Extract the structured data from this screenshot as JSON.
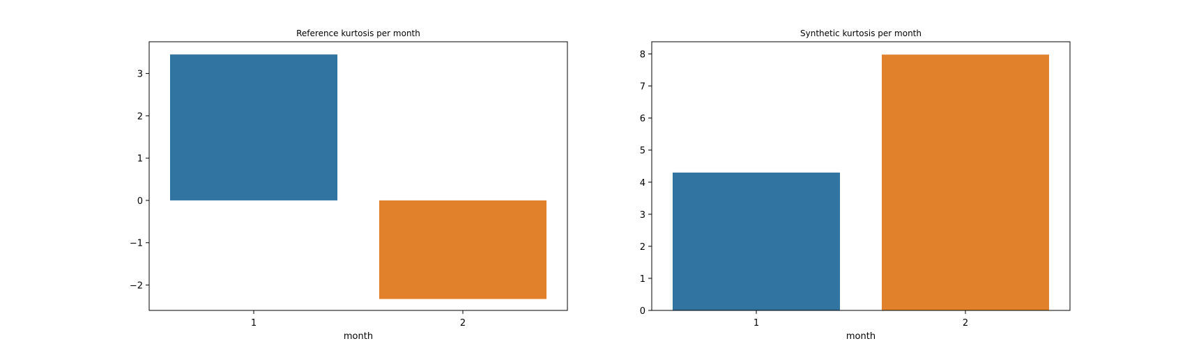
{
  "chart_data": [
    {
      "type": "bar",
      "title": "Reference kurtosis per month",
      "xlabel": "month",
      "ylabel": "",
      "categories": [
        "1",
        "2"
      ],
      "values": [
        3.45,
        -2.33
      ],
      "colors": [
        "#3274a1",
        "#e1812c"
      ],
      "ylim": [
        -2.6,
        3.75
      ],
      "yticks": [
        3,
        2,
        1,
        0,
        -1,
        -2
      ],
      "ytick_labels": [
        "3",
        "2",
        "1",
        "0",
        "−1",
        "−2"
      ],
      "grid": false
    },
    {
      "type": "bar",
      "title": "Synthetic kurtosis per month",
      "xlabel": "month",
      "ylabel": "",
      "categories": [
        "1",
        "2"
      ],
      "values": [
        4.3,
        7.98
      ],
      "colors": [
        "#3274a1",
        "#e1812c"
      ],
      "ylim": [
        0,
        8.38
      ],
      "yticks": [
        0,
        1,
        2,
        3,
        4,
        5,
        6,
        7,
        8
      ],
      "ytick_labels": [
        "0",
        "1",
        "2",
        "3",
        "4",
        "5",
        "6",
        "7",
        "8"
      ],
      "grid": false
    }
  ]
}
